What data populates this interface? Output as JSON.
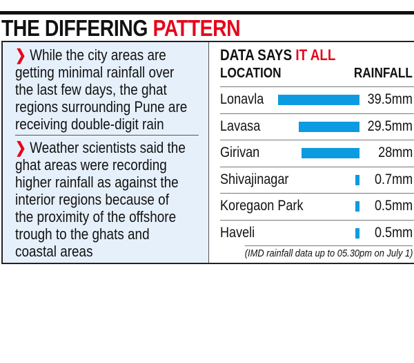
{
  "title": {
    "part1": "THE DIFFERING ",
    "part2": "PATTERN"
  },
  "bullets": [
    {
      "icon": "chevron-right-icon",
      "lines": [
        "While the city areas are",
        "getting minimal rainfall over",
        "the last few days, the ghat",
        "regions surrounding Pune are",
        "receiving double-digit rain"
      ]
    },
    {
      "icon": "chevron-right-icon",
      "lines": [
        "Weather scientists said the",
        "ghat areas were recording",
        "higher rainfall as against the",
        "interior regions because of",
        "the proximity of the offshore",
        "trough to the ghats and",
        "coastal areas"
      ]
    }
  ],
  "colors": {
    "accent": "#e4081c",
    "bar": "#0c9be0",
    "panel": "#e6f0fb"
  },
  "chart_data": {
    "type": "bar",
    "orientation": "horizontal",
    "title": {
      "part1": "DATA SAYS ",
      "part2": "IT ALL"
    },
    "xlabel": "RAINFALL",
    "ylabel": "LOCATION",
    "categories": [
      "Lonavla",
      "Lavasa",
      "Girivan",
      "Shivajinagar",
      "Koregaon Park",
      "Haveli"
    ],
    "values": [
      39.5,
      29.5,
      28,
      0.7,
      0.5,
      0.5
    ],
    "labels": [
      "39.5mm",
      "29.5mm",
      "28mm",
      "0.7mm",
      "0.5mm",
      "0.5mm"
    ],
    "unit": "mm",
    "note": "(IMD rainfall data up to 05.30pm on July 1)"
  }
}
